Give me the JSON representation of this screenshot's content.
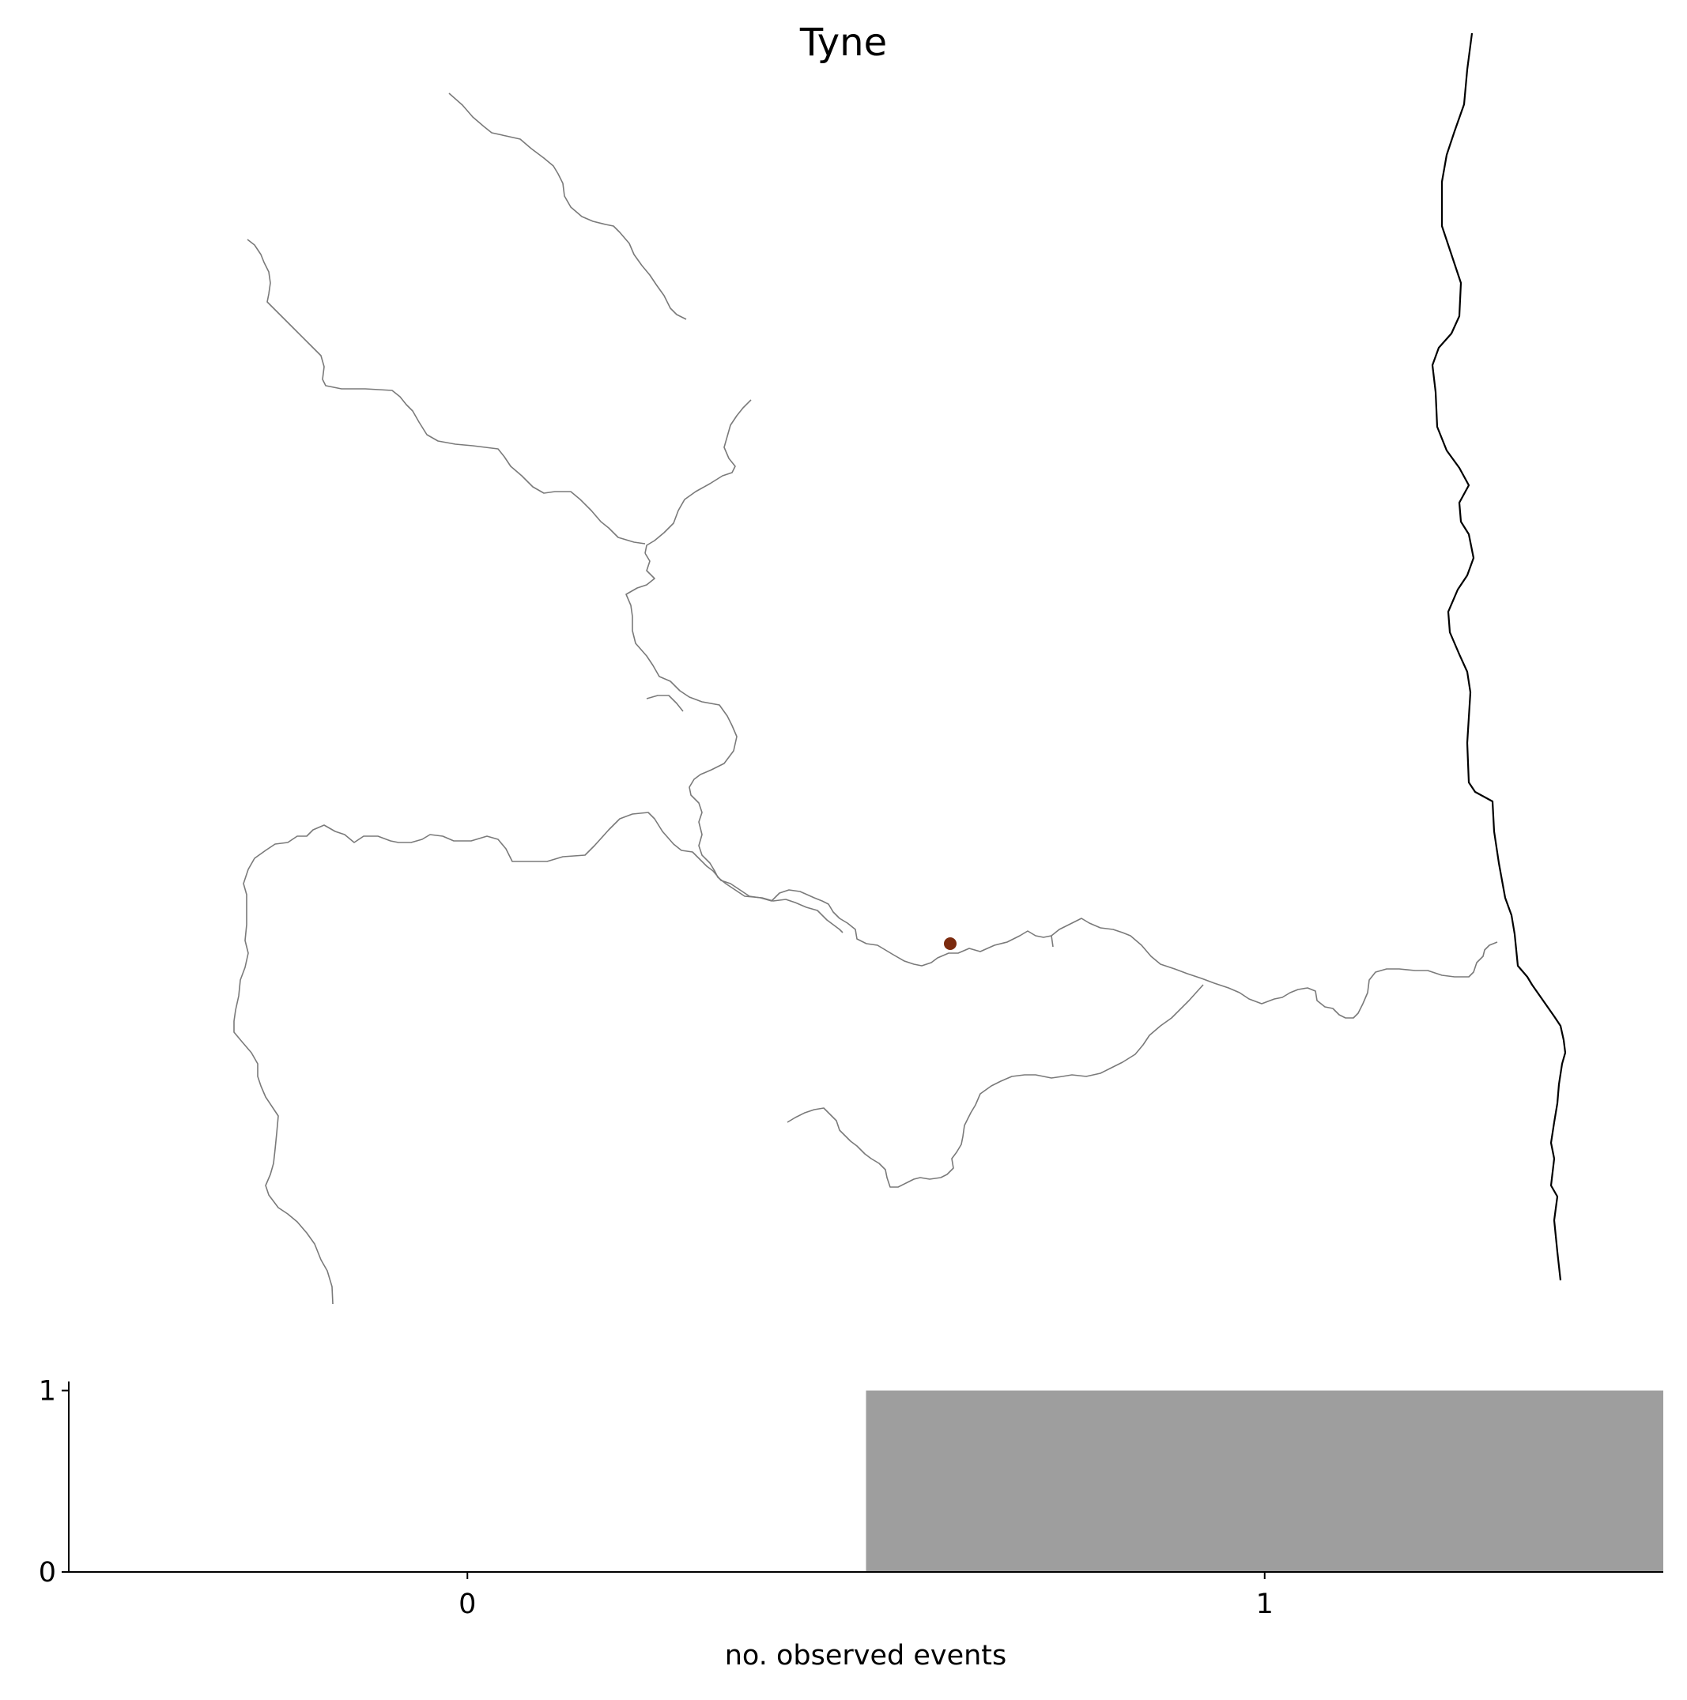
{
  "chart_data": [
    {
      "type": "map",
      "title": "Tyne",
      "river_color": "#7a7a7a",
      "coast_color": "#000000",
      "marker_color": "#7b2a0e",
      "markers": 1
    },
    {
      "type": "bar",
      "categories": [
        "0",
        "1"
      ],
      "values": [
        0,
        1
      ],
      "xlabel": "no. observed events",
      "ylabel": "",
      "ylim": [
        0,
        1.05
      ],
      "yticks": [
        "0",
        "1"
      ],
      "bar_color": "#9e9e9e",
      "grid": false
    }
  ]
}
